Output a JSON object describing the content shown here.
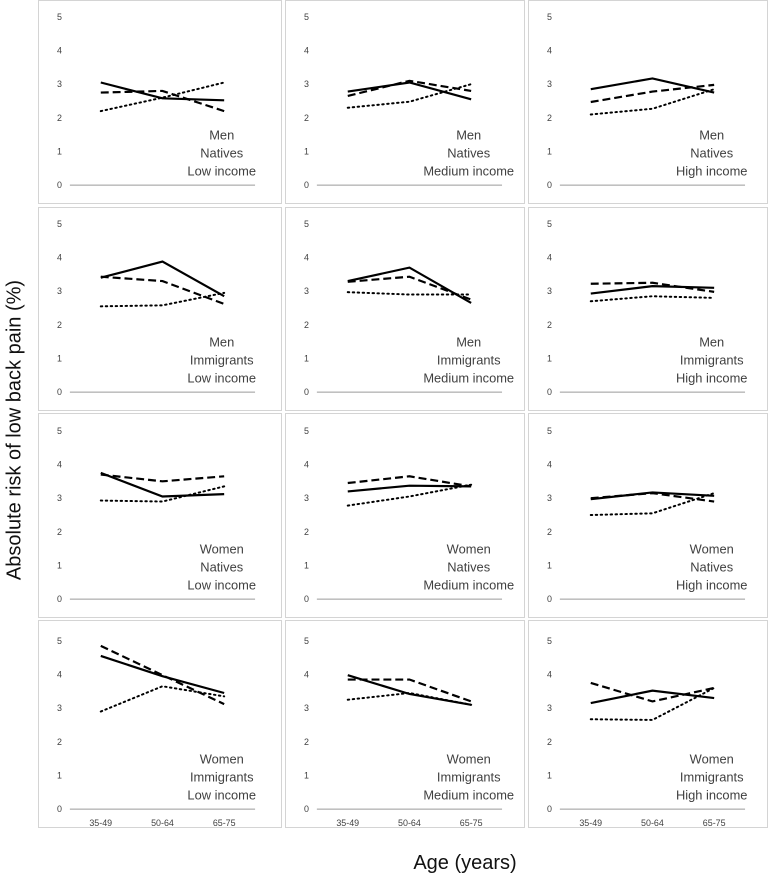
{
  "y_axis_label": "Absolute  risk of low back pain (%)",
  "x_axis_label": "Age (years)",
  "chart_data": {
    "type": "line",
    "layout": "small-multiples 4x3",
    "categories": [
      "35-49",
      "50-64",
      "65-75"
    ],
    "yticks": [
      "0",
      "1",
      "2",
      "3",
      "4",
      "5"
    ],
    "ylim": [
      0,
      5
    ],
    "line_styles": [
      "solid",
      "dashed",
      "dotted"
    ],
    "panels": [
      {
        "labels": [
          "Men",
          "Natives",
          "Low income"
        ],
        "series": [
          {
            "style": "solid",
            "values": [
              3.05,
              2.58,
              2.52
            ]
          },
          {
            "style": "dashed",
            "values": [
              2.75,
              2.8,
              2.2
            ]
          },
          {
            "style": "dotted",
            "values": [
              2.2,
              2.6,
              3.05
            ]
          }
        ]
      },
      {
        "labels": [
          "Men",
          "Natives",
          "Medium income"
        ],
        "series": [
          {
            "style": "solid",
            "values": [
              2.78,
              3.05,
              2.55
            ]
          },
          {
            "style": "dashed",
            "values": [
              2.65,
              3.1,
              2.8
            ]
          },
          {
            "style": "dotted",
            "values": [
              2.3,
              2.48,
              3.0
            ]
          }
        ]
      },
      {
        "labels": [
          "Men",
          "Natives",
          "High income"
        ],
        "series": [
          {
            "style": "solid",
            "values": [
              2.85,
              3.17,
              2.75
            ]
          },
          {
            "style": "dashed",
            "values": [
              2.47,
              2.78,
              2.98
            ]
          },
          {
            "style": "dotted",
            "values": [
              2.1,
              2.27,
              2.85
            ]
          }
        ]
      },
      {
        "labels": [
          "Men",
          "Immigrants",
          "Low income"
        ],
        "series": [
          {
            "style": "solid",
            "values": [
              3.4,
              3.88,
              2.85
            ]
          },
          {
            "style": "dashed",
            "values": [
              3.43,
              3.3,
              2.62
            ]
          },
          {
            "style": "dotted",
            "values": [
              2.55,
              2.58,
              2.95
            ]
          }
        ]
      },
      {
        "labels": [
          "Men",
          "Immigrants",
          "Medium income"
        ],
        "series": [
          {
            "style": "solid",
            "values": [
              3.3,
              3.7,
              2.65
            ]
          },
          {
            "style": "dashed",
            "values": [
              3.28,
              3.43,
              2.75
            ]
          },
          {
            "style": "dotted",
            "values": [
              2.97,
              2.9,
              2.9
            ]
          }
        ]
      },
      {
        "labels": [
          "Men",
          "Immigrants",
          "High income"
        ],
        "series": [
          {
            "style": "solid",
            "values": [
              2.93,
              3.15,
              3.1
            ]
          },
          {
            "style": "dashed",
            "values": [
              3.22,
              3.25,
              2.98
            ]
          },
          {
            "style": "dotted",
            "values": [
              2.7,
              2.85,
              2.8
            ]
          }
        ]
      },
      {
        "labels": [
          "Women",
          "Natives",
          "Low income"
        ],
        "series": [
          {
            "style": "solid",
            "values": [
              3.75,
              3.05,
              3.12
            ]
          },
          {
            "style": "dashed",
            "values": [
              3.7,
              3.5,
              3.65
            ]
          },
          {
            "style": "dotted",
            "values": [
              2.93,
              2.9,
              3.35
            ]
          }
        ]
      },
      {
        "labels": [
          "Women",
          "Natives",
          "Medium income"
        ],
        "series": [
          {
            "style": "solid",
            "values": [
              3.2,
              3.37,
              3.35
            ]
          },
          {
            "style": "dashed",
            "values": [
              3.45,
              3.65,
              3.35
            ]
          },
          {
            "style": "dotted",
            "values": [
              2.78,
              3.05,
              3.4
            ]
          }
        ]
      },
      {
        "labels": [
          "Women",
          "Natives",
          "High income"
        ],
        "series": [
          {
            "style": "solid",
            "values": [
              2.97,
              3.17,
              3.07
            ]
          },
          {
            "style": "dashed",
            "values": [
              3.0,
              3.15,
              2.9
            ]
          },
          {
            "style": "dotted",
            "values": [
              2.5,
              2.55,
              3.15
            ]
          }
        ]
      },
      {
        "labels": [
          "Women",
          "Immigrants",
          "Low income"
        ],
        "series": [
          {
            "style": "solid",
            "values": [
              4.55,
              3.95,
              3.45
            ]
          },
          {
            "style": "dashed",
            "values": [
              4.85,
              3.98,
              3.12
            ]
          },
          {
            "style": "dotted",
            "values": [
              2.9,
              3.65,
              3.35
            ]
          }
        ]
      },
      {
        "labels": [
          "Women",
          "Immigrants",
          "Medium income"
        ],
        "series": [
          {
            "style": "solid",
            "values": [
              3.98,
              3.42,
              3.1
            ]
          },
          {
            "style": "dashed",
            "values": [
              3.85,
              3.85,
              3.2
            ]
          },
          {
            "style": "dotted",
            "values": [
              3.25,
              3.45,
              3.1
            ]
          }
        ]
      },
      {
        "labels": [
          "Women",
          "Immigrants",
          "High income"
        ],
        "series": [
          {
            "style": "solid",
            "values": [
              3.15,
              3.52,
              3.3
            ]
          },
          {
            "style": "dashed",
            "values": [
              3.75,
              3.2,
              3.6
            ]
          },
          {
            "style": "dotted",
            "values": [
              2.67,
              2.65,
              3.6
            ]
          }
        ]
      }
    ]
  }
}
